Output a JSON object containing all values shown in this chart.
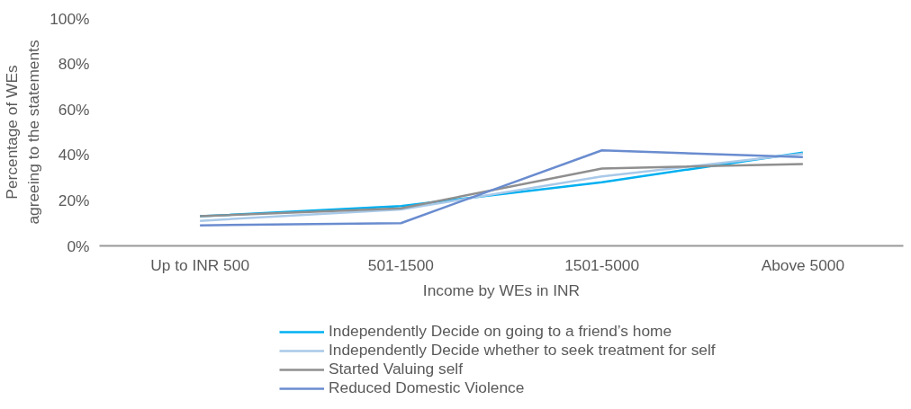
{
  "chart_data": {
    "type": "line",
    "xlabel": "Income by WEs in INR",
    "ylabel": "Percentage of WEs agreeing to the statements",
    "categories": [
      "Up to INR 500",
      "501-1500",
      "1501-5000",
      "Above 5000"
    ],
    "series": [
      {
        "name": "Independently Decide on going to a friend’s home",
        "color": "#00b0f0",
        "values": [
          13,
          17.5,
          28,
          41
        ]
      },
      {
        "name": "Independently Decide whether to seek treatment for self",
        "color": "#a9c9e8",
        "values": [
          11,
          16,
          30.5,
          40.5
        ]
      },
      {
        "name": "Started Valuing self",
        "color": "#8f8f8f",
        "values": [
          13,
          16.5,
          34,
          36
        ]
      },
      {
        "name": "Reduced Domestic Violence",
        "color": "#6a8ccf",
        "values": [
          9,
          10,
          42,
          39
        ]
      }
    ],
    "ylim": [
      0,
      100
    ],
    "yticks": [
      {
        "value": 0,
        "label": "0%"
      },
      {
        "value": 20,
        "label": "20%"
      },
      {
        "value": 40,
        "label": "40%"
      },
      {
        "value": 60,
        "label": "60%"
      },
      {
        "value": 80,
        "label": "80%"
      },
      {
        "value": 100,
        "label": "100%"
      }
    ],
    "grid": false,
    "legend": "bottom",
    "marker": "none",
    "line_style": "solid"
  }
}
